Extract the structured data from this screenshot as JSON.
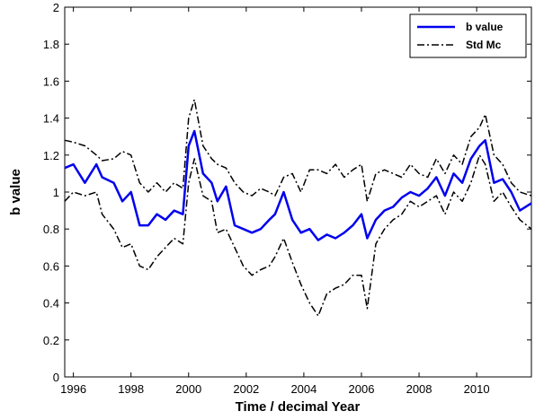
{
  "chart_data": {
    "type": "line",
    "title": "",
    "xlabel": "Time / decimal Year",
    "ylabel": "b value",
    "xlim": [
      1995.7,
      2011.9
    ],
    "ylim": [
      0,
      2
    ],
    "grid": false,
    "legend_position": "top-right",
    "x_ticks": [
      1996,
      1998,
      2000,
      2002,
      2004,
      2006,
      2008,
      2010
    ],
    "x_tick_labels": [
      "1996",
      "1998",
      "2000",
      "2002",
      "2004",
      "2006",
      "2008",
      "2010"
    ],
    "y_ticks": [
      0,
      0.2,
      0.4,
      0.6,
      0.8,
      1,
      1.2,
      1.4,
      1.6,
      1.8,
      2
    ],
    "y_tick_labels": [
      "0",
      "0.2",
      "0.4",
      "0.6",
      "0.8",
      "1",
      "1.2",
      "1.4",
      "1.6",
      "1.8",
      "2"
    ],
    "series": [
      {
        "name": "b value",
        "color": "#0000ee",
        "style": "solid",
        "x": [
          1995.7,
          1996.0,
          1996.4,
          1996.8,
          1997.0,
          1997.4,
          1997.7,
          1998.0,
          1998.3,
          1998.6,
          1998.9,
          1999.2,
          1999.5,
          1999.8,
          2000.0,
          2000.2,
          2000.5,
          2000.8,
          2001.0,
          2001.3,
          2001.6,
          2001.9,
          2002.2,
          2002.5,
          2002.8,
          2003.0,
          2003.3,
          2003.6,
          2003.9,
          2004.2,
          2004.5,
          2004.8,
          2005.1,
          2005.4,
          2005.7,
          2006.0,
          2006.2,
          2006.5,
          2006.8,
          2007.1,
          2007.4,
          2007.7,
          2008.0,
          2008.3,
          2008.6,
          2008.9,
          2009.2,
          2009.5,
          2009.8,
          2010.1,
          2010.3,
          2010.6,
          2010.9,
          2011.2,
          2011.5,
          2011.9
        ],
        "y": [
          1.13,
          1.15,
          1.05,
          1.15,
          1.08,
          1.05,
          0.95,
          1.0,
          0.82,
          0.82,
          0.88,
          0.85,
          0.9,
          0.88,
          1.25,
          1.33,
          1.1,
          1.05,
          0.95,
          1.03,
          0.82,
          0.8,
          0.78,
          0.8,
          0.85,
          0.88,
          1.0,
          0.85,
          0.78,
          0.8,
          0.74,
          0.77,
          0.75,
          0.78,
          0.82,
          0.88,
          0.75,
          0.85,
          0.9,
          0.92,
          0.97,
          1.0,
          0.98,
          1.02,
          1.08,
          0.98,
          1.1,
          1.05,
          1.18,
          1.25,
          1.28,
          1.05,
          1.07,
          1.0,
          0.9,
          0.94
        ]
      },
      {
        "name": "Std Mc",
        "color": "#000000",
        "style": "dashdot",
        "x": [
          1995.7,
          1996.0,
          1996.4,
          1996.8,
          1997.0,
          1997.4,
          1997.7,
          1998.0,
          1998.3,
          1998.6,
          1998.9,
          1999.2,
          1999.5,
          1999.8,
          2000.0,
          2000.2,
          2000.5,
          2000.8,
          2001.0,
          2001.3,
          2001.6,
          2001.9,
          2002.2,
          2002.5,
          2002.8,
          2003.0,
          2003.3,
          2003.6,
          2003.9,
          2004.2,
          2004.5,
          2004.8,
          2005.1,
          2005.4,
          2005.7,
          2006.0,
          2006.2,
          2006.5,
          2006.8,
          2007.1,
          2007.4,
          2007.7,
          2008.0,
          2008.3,
          2008.6,
          2008.9,
          2009.2,
          2009.5,
          2009.8,
          2010.1,
          2010.3,
          2010.6,
          2010.9,
          2011.2,
          2011.5,
          2011.9
        ],
        "y": [
          1.28,
          1.27,
          1.25,
          1.2,
          1.17,
          1.18,
          1.22,
          1.2,
          1.05,
          1.0,
          1.05,
          1.0,
          1.05,
          1.02,
          1.4,
          1.5,
          1.25,
          1.18,
          1.15,
          1.13,
          1.05,
          1.0,
          0.98,
          1.02,
          1.0,
          0.98,
          1.08,
          1.1,
          1.0,
          1.12,
          1.12,
          1.1,
          1.15,
          1.08,
          1.12,
          1.15,
          0.95,
          1.1,
          1.12,
          1.1,
          1.08,
          1.15,
          1.1,
          1.08,
          1.18,
          1.1,
          1.2,
          1.15,
          1.3,
          1.35,
          1.42,
          1.2,
          1.15,
          1.05,
          1.0,
          0.98
        ]
      },
      {
        "name": "",
        "color": "#000000",
        "style": "dashdot",
        "x": [
          1995.7,
          1996.0,
          1996.4,
          1996.8,
          1997.0,
          1997.4,
          1997.7,
          1998.0,
          1998.3,
          1998.6,
          1998.9,
          1999.2,
          1999.5,
          1999.8,
          2000.0,
          2000.2,
          2000.5,
          2000.8,
          2001.0,
          2001.3,
          2001.6,
          2001.9,
          2002.2,
          2002.5,
          2002.8,
          2003.0,
          2003.3,
          2003.6,
          2003.9,
          2004.2,
          2004.5,
          2004.8,
          2005.1,
          2005.4,
          2005.7,
          2006.0,
          2006.2,
          2006.5,
          2006.8,
          2007.1,
          2007.4,
          2007.7,
          2008.0,
          2008.3,
          2008.6,
          2008.9,
          2009.2,
          2009.5,
          2009.8,
          2010.1,
          2010.3,
          2010.6,
          2010.9,
          2011.2,
          2011.5,
          2011.9
        ],
        "y": [
          0.95,
          1.0,
          0.98,
          1.0,
          0.88,
          0.8,
          0.7,
          0.72,
          0.6,
          0.58,
          0.65,
          0.7,
          0.75,
          0.72,
          1.05,
          1.18,
          0.98,
          0.95,
          0.78,
          0.8,
          0.7,
          0.6,
          0.55,
          0.58,
          0.6,
          0.65,
          0.75,
          0.62,
          0.5,
          0.4,
          0.33,
          0.45,
          0.48,
          0.5,
          0.55,
          0.55,
          0.37,
          0.72,
          0.8,
          0.85,
          0.88,
          0.95,
          0.92,
          0.95,
          0.98,
          0.88,
          1.0,
          0.95,
          1.05,
          1.2,
          1.15,
          0.95,
          1.0,
          0.92,
          0.85,
          0.8
        ]
      }
    ]
  }
}
